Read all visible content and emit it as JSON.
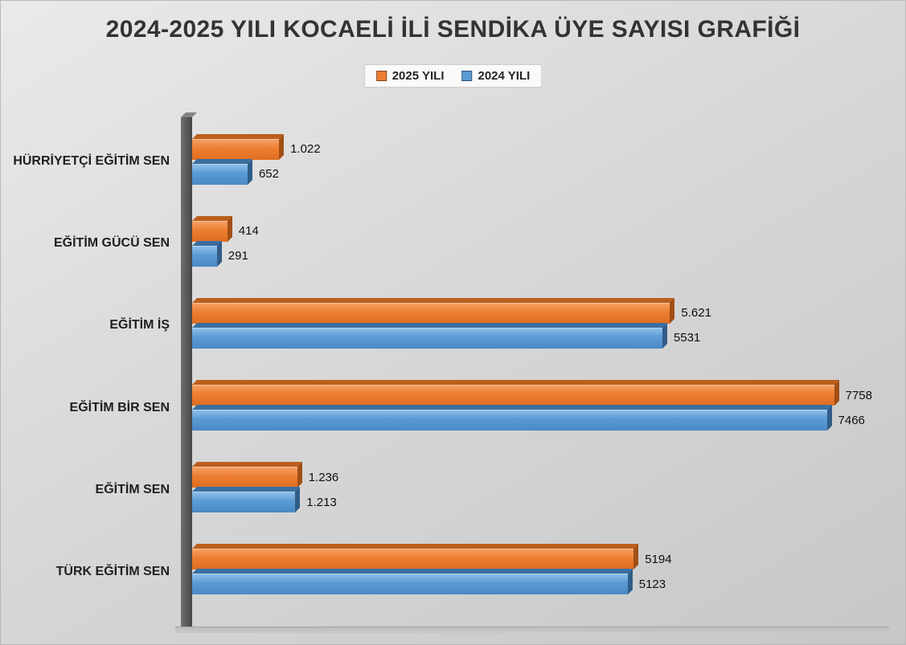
{
  "title": "2024-2025 YILI KOCAELİ İLİ SENDİKA ÜYE SAYISI GRAFİĞİ",
  "legend": [
    {
      "label": "2025 YILI",
      "color": "#ED7D31"
    },
    {
      "label": "2024 YILI",
      "color": "#5B9BD5"
    }
  ],
  "colors": {
    "series_2025": "#ED7D31",
    "series_2024": "#5B9BD5",
    "background": "#D9D9D9",
    "axis_wall": "#4D4D4D",
    "text": "#1F1F1F"
  },
  "chart_data": {
    "type": "bar",
    "orientation": "horizontal",
    "title": "2024-2025 YILI KOCAELİ İLİ SENDİKA ÜYE SAYISI GRAFİĞİ",
    "xlabel": "",
    "ylabel": "",
    "grid": false,
    "legend_position": "top",
    "xlim": [
      0,
      8000
    ],
    "categories_order": "top-to-bottom",
    "categories": [
      "HÜRRİYETÇİ EĞİTİM SEN",
      "EĞİTİM GÜCÜ SEN",
      "EĞİTİM İŞ",
      "EĞİTİM BİR SEN",
      "EĞİTİM SEN",
      "TÜRK EĞİTİM SEN"
    ],
    "series": [
      {
        "name": "2025 YILI",
        "color": "#ED7D31",
        "values": [
          1022,
          414,
          5621,
          7758,
          1236,
          5194
        ],
        "labels": [
          "1.022",
          "414",
          "5.621",
          "7758",
          "1.236",
          "5194"
        ]
      },
      {
        "name": "2024 YILI",
        "color": "#5B9BD5",
        "values": [
          652,
          291,
          5531,
          7466,
          1213,
          5123
        ],
        "labels": [
          "652",
          "291",
          "5531",
          "7466",
          "1.213",
          "5123"
        ]
      }
    ]
  }
}
